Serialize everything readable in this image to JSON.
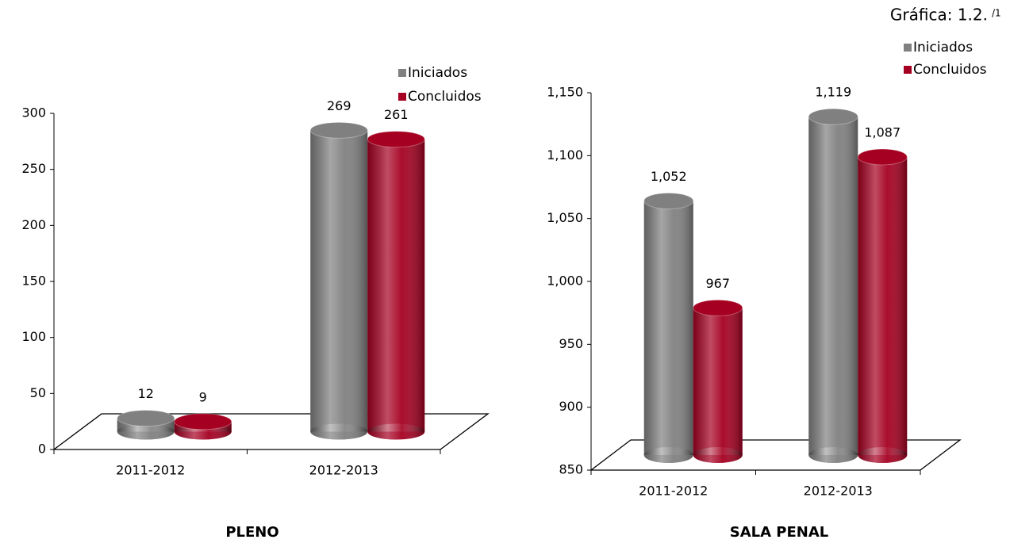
{
  "caption": "Gráfica: 1.2.",
  "caption_note": "/1",
  "chart_data": [
    {
      "type": "bar3d",
      "title": "PLENO",
      "categories": [
        "2011-2012",
        "2012-2013"
      ],
      "series": [
        {
          "name": "Iniciados",
          "color": "#808080",
          "values": [
            12,
            269
          ]
        },
        {
          "name": "Concluidos",
          "color": "#a50021",
          "values": [
            9,
            261
          ]
        }
      ],
      "ylim": [
        0,
        300
      ],
      "yticks": [
        0,
        50,
        100,
        150,
        200,
        250,
        300
      ]
    },
    {
      "type": "bar3d",
      "title": "SALA PENAL",
      "categories": [
        "2011-2012",
        "2012-2013"
      ],
      "series": [
        {
          "name": "Iniciados",
          "color": "#808080",
          "values": [
            1052,
            1119
          ],
          "value_labels": [
            "1,052",
            "1,119"
          ]
        },
        {
          "name": "Concluidos",
          "color": "#a50021",
          "values": [
            967,
            1087
          ],
          "value_labels": [
            "967",
            "1,087"
          ]
        }
      ],
      "ylim": [
        850,
        1150
      ],
      "yticks": [
        850,
        900,
        950,
        {
          "value": 1000,
          "label": "1,000"
        },
        {
          "value": 1050,
          "label": "1,050"
        },
        {
          "value": 1100,
          "label": "1,100"
        },
        {
          "value": 1150,
          "label": "1,150"
        }
      ]
    }
  ]
}
